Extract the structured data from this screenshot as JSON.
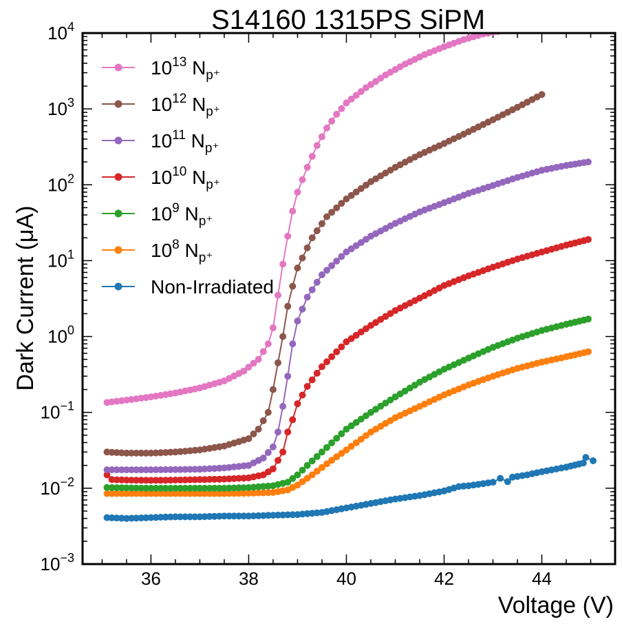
{
  "chart_data": {
    "type": "line",
    "title": "S14160 1315PS SiPM",
    "xlabel": "Voltage (V)",
    "ylabel": "Dark Current (μA)",
    "xlim": [
      34.6,
      45.5
    ],
    "ylim": [
      0.001,
      10000
    ],
    "yscale": "log",
    "x_ticks": [
      36,
      38,
      40,
      42,
      44
    ],
    "y_ticks": [
      {
        "value": 0.001,
        "base": "10",
        "exp": "−3"
      },
      {
        "value": 0.01,
        "base": "10",
        "exp": "−2"
      },
      {
        "value": 0.1,
        "base": "10",
        "exp": "−1"
      },
      {
        "value": 1,
        "base": "10",
        "exp": "0"
      },
      {
        "value": 10,
        "base": "10",
        "exp": "1"
      },
      {
        "value": 100,
        "base": "10",
        "exp": "2"
      },
      {
        "value": 1000,
        "base": "10",
        "exp": "3"
      },
      {
        "value": 10000,
        "base": "10",
        "exp": "4"
      }
    ],
    "legend_position": "top-left",
    "series": [
      {
        "name": "10^13 Np+",
        "label_base": "10",
        "label_exp": "13",
        "label_unit": "N",
        "label_sub": "p⁺",
        "color": "#e377c2",
        "points": [
          [
            35.1,
            0.135
          ],
          [
            35.5,
            0.145
          ],
          [
            36,
            0.16
          ],
          [
            36.5,
            0.18
          ],
          [
            37,
            0.21
          ],
          [
            37.5,
            0.26
          ],
          [
            37.9,
            0.35
          ],
          [
            38.2,
            0.5
          ],
          [
            38.4,
            0.8
          ],
          [
            38.5,
            1.3
          ],
          [
            38.6,
            3.5
          ],
          [
            38.7,
            9
          ],
          [
            38.8,
            21
          ],
          [
            38.9,
            45
          ],
          [
            39,
            80
          ],
          [
            39.2,
            170
          ],
          [
            39.4,
            330
          ],
          [
            39.6,
            560
          ],
          [
            39.8,
            850
          ],
          [
            40,
            1200
          ],
          [
            40.4,
            1900
          ],
          [
            40.8,
            2800
          ],
          [
            41.2,
            3900
          ],
          [
            41.6,
            5200
          ],
          [
            42,
            6600
          ],
          [
            42.4,
            8200
          ],
          [
            42.8,
            9700
          ],
          [
            43.1,
            10500
          ]
        ]
      },
      {
        "name": "10^12 Np+",
        "label_base": "10",
        "label_exp": "12",
        "label_unit": "N",
        "label_sub": "p⁺",
        "color": "#8c564b",
        "points": [
          [
            35.1,
            0.03
          ],
          [
            35.5,
            0.029
          ],
          [
            36,
            0.029
          ],
          [
            36.5,
            0.03
          ],
          [
            37,
            0.032
          ],
          [
            37.5,
            0.036
          ],
          [
            38,
            0.045
          ],
          [
            38.2,
            0.06
          ],
          [
            38.4,
            0.1
          ],
          [
            38.5,
            0.2
          ],
          [
            38.6,
            0.45
          ],
          [
            38.7,
            1
          ],
          [
            38.8,
            2.5
          ],
          [
            38.9,
            4.6
          ],
          [
            39,
            8
          ],
          [
            39.3,
            20
          ],
          [
            39.6,
            38
          ],
          [
            40,
            65
          ],
          [
            40.5,
            110
          ],
          [
            41,
            170
          ],
          [
            41.5,
            250
          ],
          [
            42,
            350
          ],
          [
            42.5,
            500
          ],
          [
            43,
            720
          ],
          [
            43.5,
            1050
          ],
          [
            44,
            1550
          ]
        ]
      },
      {
        "name": "10^11 Np+",
        "label_base": "10",
        "label_exp": "11",
        "label_unit": "N",
        "label_sub": "p⁺",
        "color": "#9467bd",
        "points": [
          [
            35.1,
            0.0175
          ],
          [
            35.5,
            0.0175
          ],
          [
            36,
            0.0175
          ],
          [
            36.5,
            0.0176
          ],
          [
            37,
            0.0178
          ],
          [
            37.5,
            0.0185
          ],
          [
            38,
            0.02
          ],
          [
            38.3,
            0.025
          ],
          [
            38.5,
            0.035
          ],
          [
            38.6,
            0.055
          ],
          [
            38.7,
            0.12
          ],
          [
            38.8,
            0.3
          ],
          [
            38.9,
            0.8
          ],
          [
            39,
            1.6
          ],
          [
            39.2,
            3.3
          ],
          [
            39.5,
            6.5
          ],
          [
            40,
            13
          ],
          [
            40.5,
            21
          ],
          [
            41,
            31
          ],
          [
            41.5,
            44
          ],
          [
            42,
            58
          ],
          [
            42.5,
            77
          ],
          [
            43,
            98
          ],
          [
            43.5,
            125
          ],
          [
            44,
            155
          ],
          [
            44.5,
            180
          ],
          [
            44.95,
            200
          ]
        ]
      },
      {
        "name": "10^10 Np+",
        "label_base": "10",
        "label_exp": "10",
        "label_unit": "N",
        "label_sub": "p⁺",
        "color": "#d62728",
        "points": [
          [
            35.1,
            0.015
          ],
          [
            35.2,
            0.013
          ],
          [
            35.5,
            0.0128
          ],
          [
            36,
            0.0127
          ],
          [
            36.5,
            0.0128
          ],
          [
            37,
            0.013
          ],
          [
            37.5,
            0.0132
          ],
          [
            38,
            0.0137
          ],
          [
            38.3,
            0.015
          ],
          [
            38.5,
            0.018
          ],
          [
            38.7,
            0.03
          ],
          [
            38.8,
            0.055
          ],
          [
            38.9,
            0.08
          ],
          [
            39,
            0.13
          ],
          [
            39.2,
            0.22
          ],
          [
            39.5,
            0.4
          ],
          [
            40,
            0.85
          ],
          [
            40.5,
            1.4
          ],
          [
            41,
            2.2
          ],
          [
            41.5,
            3.2
          ],
          [
            42,
            4.7
          ],
          [
            42.5,
            6.3
          ],
          [
            43,
            8.2
          ],
          [
            43.5,
            10.5
          ],
          [
            44,
            13
          ],
          [
            44.5,
            16
          ],
          [
            44.95,
            19
          ]
        ]
      },
      {
        "name": "10^9 Np+",
        "label_base": "10",
        "label_exp": "9",
        "label_unit": "N",
        "label_sub": "p⁺",
        "color": "#2ca02c",
        "points": [
          [
            35.1,
            0.0102
          ],
          [
            35.5,
            0.0101
          ],
          [
            36,
            0.01
          ],
          [
            36.5,
            0.01
          ],
          [
            37,
            0.01
          ],
          [
            37.5,
            0.01
          ],
          [
            38,
            0.0102
          ],
          [
            38.5,
            0.0108
          ],
          [
            38.8,
            0.012
          ],
          [
            39,
            0.015
          ],
          [
            39.2,
            0.02
          ],
          [
            39.5,
            0.03
          ],
          [
            40,
            0.06
          ],
          [
            40.5,
            0.1
          ],
          [
            41,
            0.16
          ],
          [
            41.5,
            0.25
          ],
          [
            42,
            0.37
          ],
          [
            42.5,
            0.52
          ],
          [
            43,
            0.72
          ],
          [
            43.5,
            0.95
          ],
          [
            44,
            1.2
          ],
          [
            44.5,
            1.45
          ],
          [
            44.95,
            1.7
          ]
        ]
      },
      {
        "name": "10^8 Np+",
        "label_base": "10",
        "label_exp": "8",
        "label_unit": "N",
        "label_sub": "p⁺",
        "color": "#ff7f0e",
        "points": [
          [
            35.1,
            0.0085
          ],
          [
            35.5,
            0.0085
          ],
          [
            36,
            0.0085
          ],
          [
            36.5,
            0.0085
          ],
          [
            37,
            0.0085
          ],
          [
            37.5,
            0.0085
          ],
          [
            38,
            0.0086
          ],
          [
            38.5,
            0.0088
          ],
          [
            38.8,
            0.0095
          ],
          [
            39,
            0.011
          ],
          [
            39.3,
            0.015
          ],
          [
            39.6,
            0.021
          ],
          [
            40,
            0.032
          ],
          [
            40.5,
            0.055
          ],
          [
            41,
            0.085
          ],
          [
            41.5,
            0.12
          ],
          [
            42,
            0.17
          ],
          [
            42.5,
            0.23
          ],
          [
            43,
            0.3
          ],
          [
            43.5,
            0.38
          ],
          [
            44,
            0.46
          ],
          [
            44.5,
            0.54
          ],
          [
            44.95,
            0.63
          ]
        ]
      },
      {
        "name": "Non-Irradiated",
        "label_text": "Non-Irradiated",
        "color": "#1f77b4",
        "points": [
          [
            35.1,
            0.0041
          ],
          [
            35.5,
            0.004
          ],
          [
            36,
            0.0041
          ],
          [
            36.5,
            0.0042
          ],
          [
            37,
            0.0042
          ],
          [
            37.5,
            0.0043
          ],
          [
            38,
            0.0043
          ],
          [
            38.5,
            0.0044
          ],
          [
            39,
            0.0045
          ],
          [
            39.5,
            0.0048
          ],
          [
            40,
            0.0055
          ],
          [
            40.5,
            0.0063
          ],
          [
            41,
            0.0072
          ],
          [
            41.5,
            0.008
          ],
          [
            42,
            0.0092
          ],
          [
            42.3,
            0.0105
          ],
          [
            42.5,
            0.0108
          ],
          [
            43,
            0.012
          ],
          [
            43.15,
            0.0135
          ],
          [
            43.3,
            0.0122
          ],
          [
            43.4,
            0.014
          ],
          [
            43.7,
            0.015
          ],
          [
            44,
            0.0165
          ],
          [
            44.5,
            0.019
          ],
          [
            44.85,
            0.0215
          ],
          [
            44.9,
            0.0255
          ],
          [
            45.05,
            0.023
          ]
        ]
      }
    ]
  }
}
